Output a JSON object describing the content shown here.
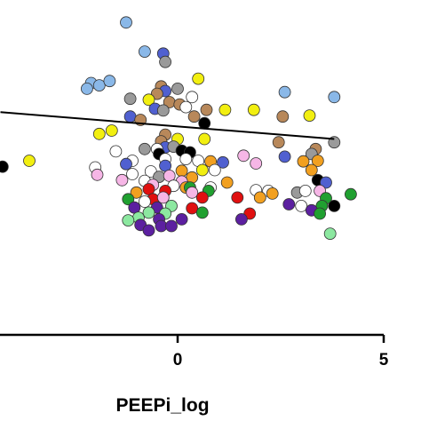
{
  "chart_data": {
    "type": "scatter",
    "xlabel": "PEEPi_log",
    "x_ticks": [
      0,
      5
    ],
    "x_tick_labels": [
      "0",
      "5"
    ],
    "xlim": [
      -4.3,
      5
    ],
    "ylim": [
      0,
      1
    ],
    "regression_line": {
      "x": [
        -4.3,
        3.8
      ],
      "y": [
        0.665,
        0.585
      ]
    },
    "points": [
      {
        "x": -1.25,
        "y": 0.933,
        "color": "#8ab8e8"
      },
      {
        "x": -0.8,
        "y": 0.846,
        "color": "#8ab8e8"
      },
      {
        "x": -0.35,
        "y": 0.84,
        "color": "#5060d0"
      },
      {
        "x": -0.3,
        "y": 0.815,
        "color": "#9a9a9a"
      },
      {
        "x": -2.1,
        "y": 0.752,
        "color": "#8ab8e8"
      },
      {
        "x": -1.9,
        "y": 0.745,
        "color": "#8ab8e8"
      },
      {
        "x": -1.65,
        "y": 0.758,
        "color": "#8ab8e8"
      },
      {
        "x": -2.2,
        "y": 0.735,
        "color": "#8ab8e8"
      },
      {
        "x": -0.4,
        "y": 0.742,
        "color": "#b8885a"
      },
      {
        "x": -0.3,
        "y": 0.728,
        "color": "#5060d0"
      },
      {
        "x": -0.5,
        "y": 0.72,
        "color": "#b8885a"
      },
      {
        "x": 0.0,
        "y": 0.735,
        "color": "#9a9a9a"
      },
      {
        "x": 0.5,
        "y": 0.765,
        "color": "#f2ef10"
      },
      {
        "x": -1.15,
        "y": 0.705,
        "color": "#9a9a9a"
      },
      {
        "x": -0.7,
        "y": 0.702,
        "color": "#f2ef10"
      },
      {
        "x": -0.2,
        "y": 0.695,
        "color": "#b8885a"
      },
      {
        "x": 0.35,
        "y": 0.71,
        "color": "#ffffff"
      },
      {
        "x": 0.05,
        "y": 0.688,
        "color": "#b8885a"
      },
      {
        "x": -0.55,
        "y": 0.675,
        "color": "#5060d0"
      },
      {
        "x": -0.35,
        "y": 0.67,
        "color": "#9a9a9a"
      },
      {
        "x": 0.2,
        "y": 0.68,
        "color": "#ffffff"
      },
      {
        "x": 0.7,
        "y": 0.672,
        "color": "#b8885a"
      },
      {
        "x": 1.15,
        "y": 0.672,
        "color": "#f2ef10"
      },
      {
        "x": 1.85,
        "y": 0.672,
        "color": "#f2ef10"
      },
      {
        "x": 2.6,
        "y": 0.725,
        "color": "#8ab8e8"
      },
      {
        "x": 3.8,
        "y": 0.71,
        "color": "#8ab8e8"
      },
      {
        "x": -1.15,
        "y": 0.652,
        "color": "#5060d0"
      },
      {
        "x": -0.9,
        "y": 0.642,
        "color": "#b8885a"
      },
      {
        "x": 0.4,
        "y": 0.652,
        "color": "#b8885a"
      },
      {
        "x": 2.55,
        "y": 0.652,
        "color": "#b8885a"
      },
      {
        "x": 3.2,
        "y": 0.655,
        "color": "#f2ef10"
      },
      {
        "x": -1.9,
        "y": 0.6,
        "color": "#f2ef10"
      },
      {
        "x": -1.6,
        "y": 0.61,
        "color": "#f2ef10"
      },
      {
        "x": -0.3,
        "y": 0.598,
        "color": "#b8885a"
      },
      {
        "x": 0.65,
        "y": 0.632,
        "color": "#000000"
      },
      {
        "x": 0.0,
        "y": 0.585,
        "color": "#f2ef10"
      },
      {
        "x": -0.4,
        "y": 0.578,
        "color": "#b8885a"
      },
      {
        "x": 0.65,
        "y": 0.585,
        "color": "#f2ef10"
      },
      {
        "x": -0.3,
        "y": 0.56,
        "color": "#5060d0"
      },
      {
        "x": -0.1,
        "y": 0.562,
        "color": "#9a9a9a"
      },
      {
        "x": -0.5,
        "y": 0.555,
        "color": "#ffffff"
      },
      {
        "x": -0.8,
        "y": 0.555,
        "color": "#9a9a9a"
      },
      {
        "x": -1.5,
        "y": 0.548,
        "color": "#ffffff"
      },
      {
        "x": 0.1,
        "y": 0.55,
        "color": "#000000"
      },
      {
        "x": -0.45,
        "y": 0.54,
        "color": "#000000"
      },
      {
        "x": 0.3,
        "y": 0.545,
        "color": "#000000"
      },
      {
        "x": 2.45,
        "y": 0.575,
        "color": "#b8885a"
      },
      {
        "x": 3.35,
        "y": 0.555,
        "color": "#b8885a"
      },
      {
        "x": 3.8,
        "y": 0.575,
        "color": "#9a9a9a"
      },
      {
        "x": -4.25,
        "y": 0.502,
        "color": "#000000"
      },
      {
        "x": -3.6,
        "y": 0.52,
        "color": "#f2ef10"
      },
      {
        "x": -1.1,
        "y": 0.52,
        "color": "#ffffff"
      },
      {
        "x": -1.25,
        "y": 0.51,
        "color": "#5060d0"
      },
      {
        "x": -0.3,
        "y": 0.525,
        "color": "#ffffff"
      },
      {
        "x": 0.2,
        "y": 0.525,
        "color": "#ffffff"
      },
      {
        "x": 0.5,
        "y": 0.52,
        "color": "#ffffff"
      },
      {
        "x": 0.8,
        "y": 0.518,
        "color": "#f2a020"
      },
      {
        "x": 1.6,
        "y": 0.535,
        "color": "#f6b6e6"
      },
      {
        "x": 1.1,
        "y": 0.515,
        "color": "#5060d0"
      },
      {
        "x": 2.6,
        "y": 0.532,
        "color": "#5060d0"
      },
      {
        "x": 3.25,
        "y": 0.54,
        "color": "#9a9a9a"
      },
      {
        "x": 3.05,
        "y": 0.518,
        "color": "#f2a020"
      },
      {
        "x": 3.4,
        "y": 0.52,
        "color": "#f2a020"
      },
      {
        "x": -2.0,
        "y": 0.5,
        "color": "#ffffff"
      },
      {
        "x": -0.3,
        "y": 0.505,
        "color": "#5060d0"
      },
      {
        "x": 1.9,
        "y": 0.512,
        "color": "#f6b6e6"
      },
      {
        "x": 3.25,
        "y": 0.492,
        "color": "#f2a020"
      },
      {
        "x": -1.95,
        "y": 0.478,
        "color": "#f6b6e6"
      },
      {
        "x": -1.1,
        "y": 0.48,
        "color": "#ffffff"
      },
      {
        "x": -0.65,
        "y": 0.488,
        "color": "#ffffff"
      },
      {
        "x": 0.1,
        "y": 0.49,
        "color": "#f2a020"
      },
      {
        "x": 0.6,
        "y": 0.492,
        "color": "#f2ef10"
      },
      {
        "x": 0.9,
        "y": 0.492,
        "color": "#ffffff"
      },
      {
        "x": -0.45,
        "y": 0.472,
        "color": "#9a9a9a"
      },
      {
        "x": -0.2,
        "y": 0.475,
        "color": "#f6b6e6"
      },
      {
        "x": 0.35,
        "y": 0.47,
        "color": "#f2a020"
      },
      {
        "x": 3.4,
        "y": 0.462,
        "color": "#000000"
      },
      {
        "x": -1.35,
        "y": 0.462,
        "color": "#f6b6e6"
      },
      {
        "x": -0.8,
        "y": 0.46,
        "color": "#ffffff"
      },
      {
        "x": 0.1,
        "y": 0.458,
        "color": "#f6b6e6"
      },
      {
        "x": 3.6,
        "y": 0.455,
        "color": "#5060d0"
      },
      {
        "x": 1.2,
        "y": 0.455,
        "color": "#f2a020"
      },
      {
        "x": -0.1,
        "y": 0.445,
        "color": "#ffffff"
      },
      {
        "x": -0.6,
        "y": 0.448,
        "color": "#f6b6e6"
      },
      {
        "x": 0.2,
        "y": 0.44,
        "color": "#f2a020"
      },
      {
        "x": 0.3,
        "y": 0.44,
        "color": "#20a030"
      },
      {
        "x": 0.8,
        "y": 0.44,
        "color": "#ffffff"
      },
      {
        "x": -1.0,
        "y": 0.425,
        "color": "#f2a020"
      },
      {
        "x": -0.7,
        "y": 0.435,
        "color": "#e01010"
      },
      {
        "x": -0.3,
        "y": 0.43,
        "color": "#e01010"
      },
      {
        "x": 0.35,
        "y": 0.425,
        "color": "#f6b6e6"
      },
      {
        "x": 0.75,
        "y": 0.43,
        "color": "#20a030"
      },
      {
        "x": 1.9,
        "y": 0.432,
        "color": "#ffffff"
      },
      {
        "x": 2.2,
        "y": 0.43,
        "color": "#ffffff"
      },
      {
        "x": 2.3,
        "y": 0.422,
        "color": "#f2a020"
      },
      {
        "x": 2.9,
        "y": 0.425,
        "color": "#9a9a9a"
      },
      {
        "x": 3.1,
        "y": 0.43,
        "color": "#ffffff"
      },
      {
        "x": 3.45,
        "y": 0.43,
        "color": "#f6b6e6"
      },
      {
        "x": 4.2,
        "y": 0.42,
        "color": "#20a030"
      },
      {
        "x": -1.2,
        "y": 0.405,
        "color": "#20a030"
      },
      {
        "x": -0.6,
        "y": 0.405,
        "color": "#e01010"
      },
      {
        "x": -0.35,
        "y": 0.41,
        "color": "#f6b6e6"
      },
      {
        "x": 0.6,
        "y": 0.41,
        "color": "#e01010"
      },
      {
        "x": 1.45,
        "y": 0.41,
        "color": "#e01010"
      },
      {
        "x": 2.0,
        "y": 0.41,
        "color": "#f2a020"
      },
      {
        "x": 3.6,
        "y": 0.408,
        "color": "#20a030"
      },
      {
        "x": -0.8,
        "y": 0.398,
        "color": "#ffffff"
      },
      {
        "x": -1.05,
        "y": 0.38,
        "color": "#5c20a0"
      },
      {
        "x": -0.5,
        "y": 0.38,
        "color": "#5c20a0"
      },
      {
        "x": -0.15,
        "y": 0.385,
        "color": "#8ce8a0"
      },
      {
        "x": 0.35,
        "y": 0.378,
        "color": "#e01010"
      },
      {
        "x": 2.7,
        "y": 0.39,
        "color": "#5c20a0"
      },
      {
        "x": 3.0,
        "y": 0.385,
        "color": "#ffffff"
      },
      {
        "x": 3.5,
        "y": 0.385,
        "color": "#20a030"
      },
      {
        "x": 3.8,
        "y": 0.385,
        "color": "#000000"
      },
      {
        "x": -0.7,
        "y": 0.365,
        "color": "#8ce8a0"
      },
      {
        "x": -0.3,
        "y": 0.362,
        "color": "#8ce8a0"
      },
      {
        "x": 0.6,
        "y": 0.365,
        "color": "#20a030"
      },
      {
        "x": 1.75,
        "y": 0.362,
        "color": "#e01010"
      },
      {
        "x": 3.25,
        "y": 0.372,
        "color": "#5c20a0"
      },
      {
        "x": 3.45,
        "y": 0.362,
        "color": "#20a030"
      },
      {
        "x": -0.95,
        "y": 0.35,
        "color": "#8ce8a0"
      },
      {
        "x": -0.45,
        "y": 0.345,
        "color": "#5c20a0"
      },
      {
        "x": 0.1,
        "y": 0.345,
        "color": "#5c20a0"
      },
      {
        "x": -1.2,
        "y": 0.342,
        "color": "#8ce8a0"
      },
      {
        "x": 1.55,
        "y": 0.345,
        "color": "#5c20a0"
      },
      {
        "x": -0.9,
        "y": 0.328,
        "color": "#5c20a0"
      },
      {
        "x": -0.4,
        "y": 0.325,
        "color": "#5c20a0"
      },
      {
        "x": -0.15,
        "y": 0.325,
        "color": "#5c20a0"
      },
      {
        "x": -0.7,
        "y": 0.312,
        "color": "#5c20a0"
      },
      {
        "x": 3.7,
        "y": 0.302,
        "color": "#8ce8a0"
      }
    ]
  }
}
